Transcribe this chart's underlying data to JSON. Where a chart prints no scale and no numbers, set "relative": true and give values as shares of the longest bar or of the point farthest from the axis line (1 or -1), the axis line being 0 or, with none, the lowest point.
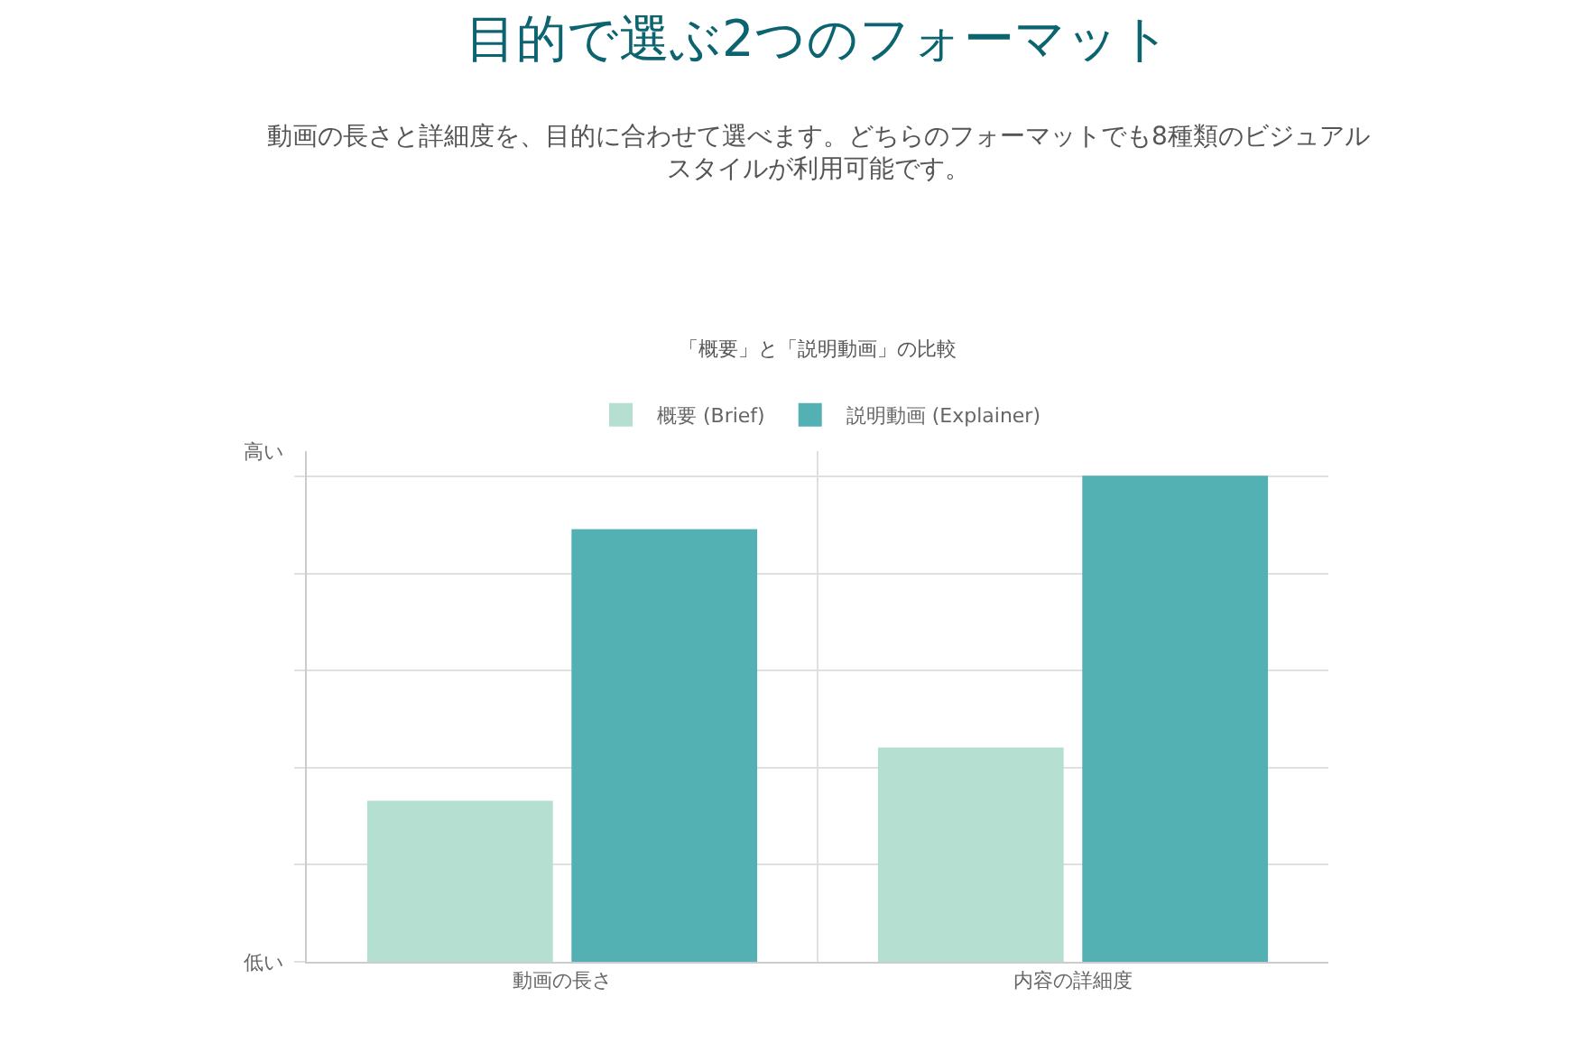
{
  "chart_data": {
    "type": "bar",
    "title": "目的で選ぶ2つのフォーマット",
    "subtitle": "動画の長さと詳細度を、目的に合わせて選べます。どちらのフォーマットでも8種類のビジュアルスタイルが利用可能です。",
    "annotations": [
      "「概要」と「説明動画」の比較",
      "低い",
      "高い"
    ],
    "relative": true,
    "categories": [
      "動画の長さ",
      "内容の詳細度"
    ],
    "series": [
      {
        "name": "概要 (Brief)",
        "color": "#b4dfd1",
        "values": [
          0.33,
          0.44
        ]
      },
      {
        "name": "説明動画 (Explainer)",
        "color": "#53b1b4",
        "values": [
          0.89,
          1
        ]
      }
    ],
    "grid": true,
    "legend": "top"
  }
}
